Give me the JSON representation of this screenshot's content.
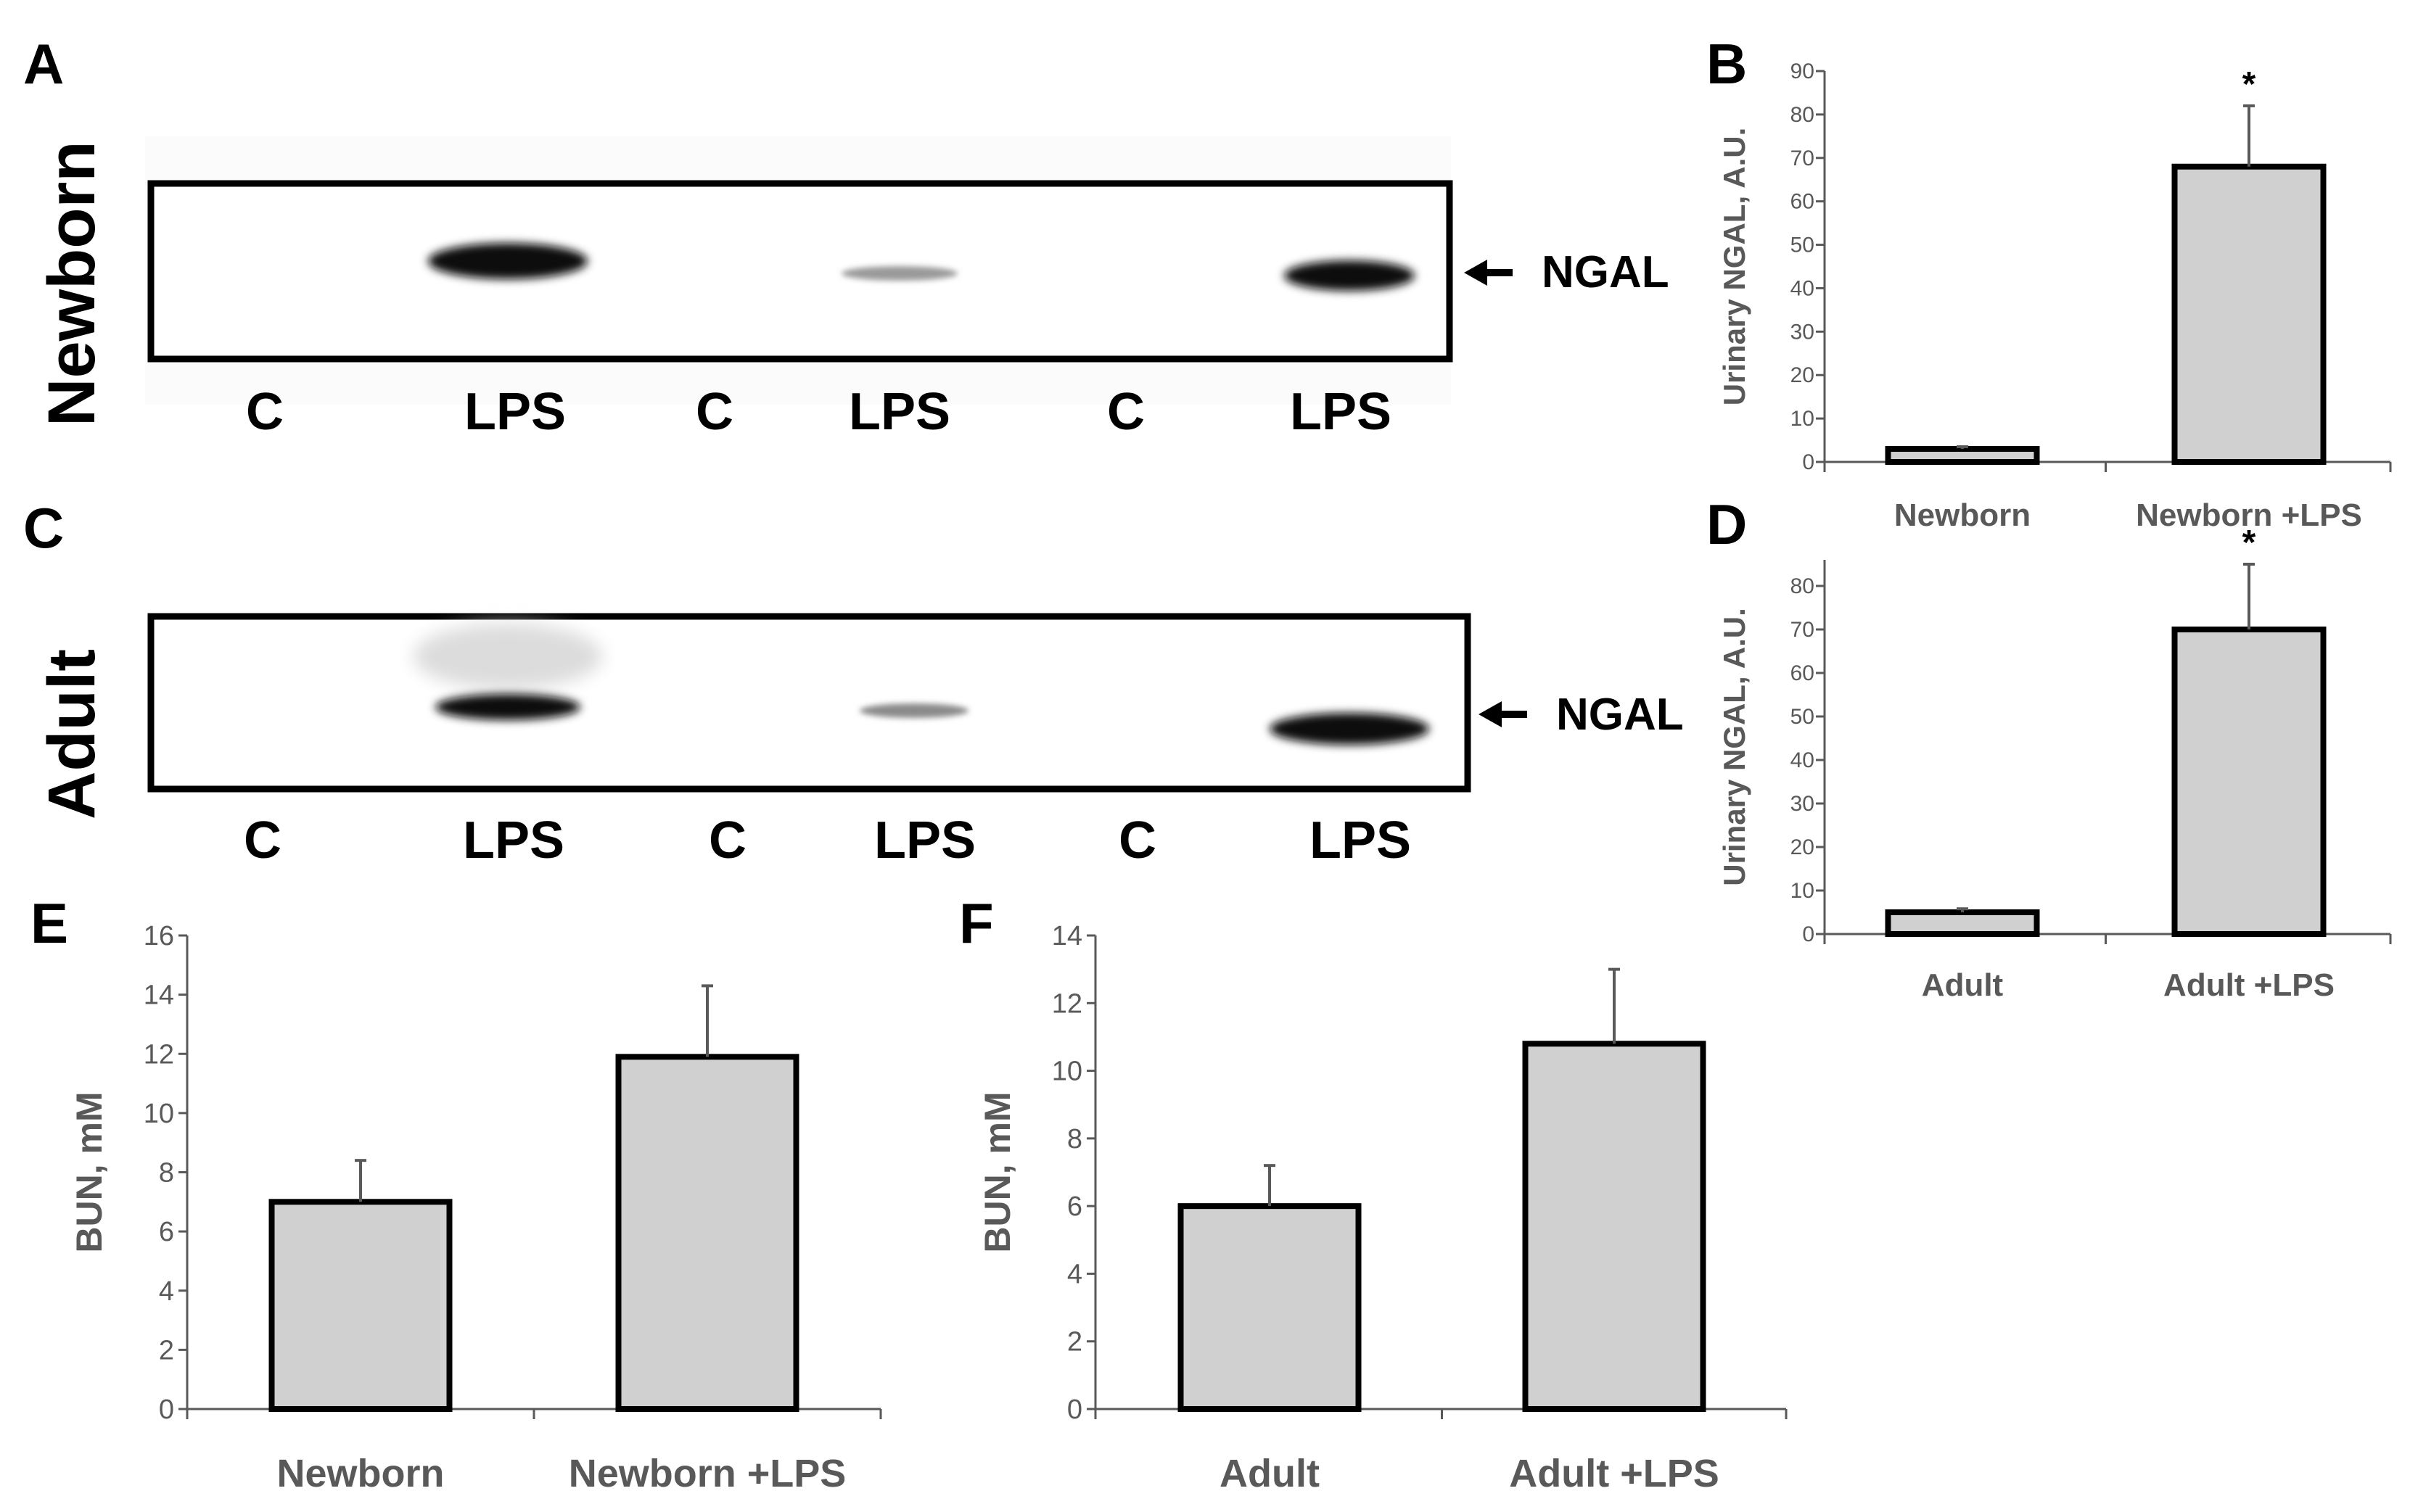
{
  "figure": {
    "panels": {
      "A": "A",
      "B": "B",
      "C": "C",
      "D": "D",
      "E": "E",
      "F": "F"
    },
    "blot_newborn": {
      "row_label": "Newborn",
      "lanes": [
        "C",
        "LPS",
        "C",
        "LPS",
        "C",
        "LPS"
      ],
      "band_label": "NGAL"
    },
    "blot_adult": {
      "row_label": "Adult",
      "lanes": [
        "C",
        "LPS",
        "C",
        "LPS",
        "C",
        "LPS"
      ],
      "band_label": "NGAL"
    }
  },
  "chart_data": [
    {
      "id": "B",
      "type": "bar",
      "categories": [
        "Newborn",
        "Newborn +LPS"
      ],
      "values": [
        3,
        68
      ],
      "errors": [
        0.5,
        14
      ],
      "significance": [
        "",
        "*"
      ],
      "ylabel": "Urinary NGAL, A.U.",
      "ylim": [
        0,
        90
      ],
      "yticks": [
        0,
        10,
        20,
        30,
        40,
        50,
        60,
        70,
        80,
        90
      ],
      "bar_color": "#d0d0d0"
    },
    {
      "id": "D",
      "type": "bar",
      "categories": [
        "Adult",
        "Adult +LPS"
      ],
      "values": [
        5,
        70
      ],
      "errors": [
        0.8,
        15
      ],
      "significance": [
        "",
        "*"
      ],
      "ylabel": "Urinary NGAL, A.U.",
      "ylim": [
        0,
        86
      ],
      "yticks": [
        0,
        10,
        20,
        30,
        40,
        50,
        60,
        70,
        80
      ],
      "bar_color": "#d0d0d0"
    },
    {
      "id": "E",
      "type": "bar",
      "categories": [
        "Newborn",
        "Newborn +LPS"
      ],
      "values": [
        7,
        11.9
      ],
      "errors": [
        1.4,
        2.4
      ],
      "ylabel": "BUN, mM",
      "ylim": [
        0,
        16
      ],
      "yticks": [
        0,
        2,
        4,
        6,
        8,
        10,
        12,
        14,
        16
      ],
      "bar_color": "#d0d0d0"
    },
    {
      "id": "F",
      "type": "bar",
      "categories": [
        "Adult",
        "Adult +LPS"
      ],
      "values": [
        6,
        10.8
      ],
      "errors": [
        1.2,
        2.2
      ],
      "ylabel": "BUN, mM",
      "ylim": [
        0,
        14
      ],
      "yticks": [
        0,
        2,
        4,
        6,
        8,
        10,
        12,
        14
      ],
      "bar_color": "#d0d0d0"
    }
  ]
}
